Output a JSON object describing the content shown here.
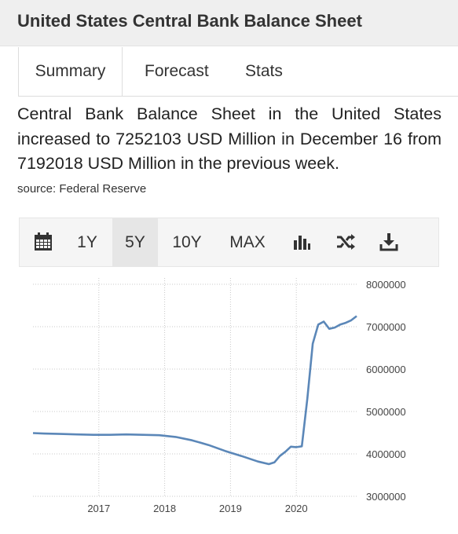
{
  "header": {
    "title": "United States Central Bank Balance Sheet"
  },
  "tabs": [
    {
      "label": "Summary",
      "active": true
    },
    {
      "label": "Forecast",
      "active": false
    },
    {
      "label": "Stats",
      "active": false
    }
  ],
  "summary": {
    "text": "Central Bank Balance Sheet in the United States increased to 7252103 USD Million in December 16 from 7192018 USD Million in the previous week.",
    "source": "source: Federal Reserve"
  },
  "toolbar": {
    "items": [
      "1Y",
      "5Y",
      "10Y",
      "MAX"
    ],
    "selected": "5Y",
    "icons": [
      "calendar-icon",
      "bar-chart-icon",
      "shuffle-icon",
      "download-icon"
    ]
  },
  "chart_data": {
    "type": "line",
    "title": "",
    "xlabel": "",
    "ylabel": "",
    "x_ticks": [
      "2017",
      "2018",
      "2019",
      "2020"
    ],
    "y_ticks": [
      "8000000",
      "7000000",
      "6000000",
      "5000000",
      "4000000",
      "3000000"
    ],
    "ylim": [
      3000000,
      8000000
    ],
    "xlim": [
      "2016-01",
      "2020-12"
    ],
    "grid": true,
    "color": "#5b87b8",
    "series": [
      {
        "x": [
          "2016-01",
          "2016-03",
          "2016-06",
          "2016-09",
          "2016-12",
          "2017-03",
          "2017-06",
          "2017-09",
          "2017-12",
          "2018-03",
          "2018-06",
          "2018-09",
          "2018-12",
          "2019-03",
          "2019-06",
          "2019-08",
          "2019-09",
          "2019-10",
          "2019-11",
          "2019-12",
          "2020-01",
          "2020-02",
          "2020-03",
          "2020-04",
          "2020-05",
          "2020-06",
          "2020-07",
          "2020-08",
          "2020-09",
          "2020-10",
          "2020-11",
          "2020-12"
        ],
        "values": [
          4490000,
          4480000,
          4470000,
          4460000,
          4450000,
          4450000,
          4460000,
          4450000,
          4440000,
          4400000,
          4320000,
          4210000,
          4070000,
          3950000,
          3820000,
          3760000,
          3800000,
          3950000,
          4050000,
          4170000,
          4160000,
          4180000,
          5300000,
          6600000,
          7050000,
          7120000,
          6950000,
          6980000,
          7050000,
          7090000,
          7150000,
          7250000
        ]
      }
    ]
  }
}
